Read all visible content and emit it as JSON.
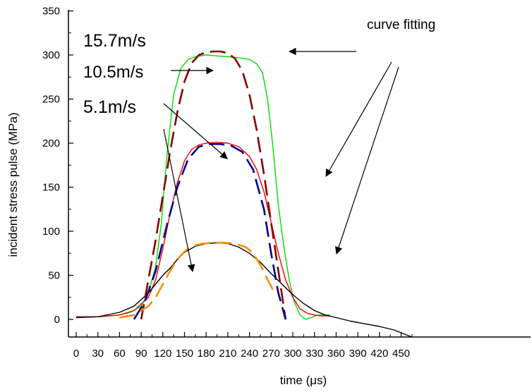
{
  "chart_data": {
    "type": "line",
    "xlabel": "time (μs)",
    "ylabel": "incident stress pulse (MPa)",
    "xlim": [
      -10,
      465
    ],
    "ylim": [
      -20,
      350
    ],
    "x_ticks": [
      0,
      30,
      60,
      90,
      120,
      150,
      180,
      210,
      240,
      270,
      300,
      330,
      360,
      390,
      420,
      450
    ],
    "y_ticks": [
      0,
      50,
      100,
      150,
      200,
      250,
      300,
      350
    ],
    "grid": false,
    "legend": "none",
    "annotations": {
      "label_15_7": "15.7m/s",
      "label_10_5": "10.5m/s",
      "label_5_1": "5.1m/s",
      "label_fit": "curve fitting"
    },
    "series": [
      {
        "color": "#00dd00",
        "style": "solid",
        "x": [
          0,
          30,
          60,
          75,
          90,
          100,
          110,
          118,
          125,
          135,
          145,
          155,
          165,
          180,
          195,
          210,
          225,
          240,
          250,
          258,
          265,
          272,
          280,
          288,
          295,
          302,
          310,
          318,
          325,
          335,
          345,
          352
        ],
        "y": [
          3,
          3,
          5,
          8,
          15,
          30,
          60,
          110,
          180,
          255,
          285,
          295,
          298,
          300,
          299,
          298,
          297,
          295,
          290,
          280,
          250,
          200,
          130,
          80,
          45,
          20,
          5,
          0,
          2,
          5,
          5,
          5
        ]
      },
      {
        "color": "#ee0000",
        "style": "solid",
        "x": [
          0,
          30,
          60,
          80,
          100,
          110,
          120,
          130,
          140,
          150,
          160,
          170,
          180,
          195,
          210,
          225,
          240,
          250,
          260,
          270,
          280,
          290,
          300,
          310,
          320,
          330,
          340,
          350
        ],
        "y": [
          3,
          3,
          5,
          10,
          25,
          45,
          80,
          120,
          155,
          180,
          193,
          198,
          200,
          201,
          200,
          196,
          185,
          170,
          145,
          110,
          75,
          45,
          25,
          12,
          7,
          5,
          4,
          4
        ]
      },
      {
        "color": "#000000",
        "style": "solid",
        "x": [
          0,
          30,
          60,
          80,
          100,
          110,
          120,
          130,
          140,
          150,
          165,
          180,
          195,
          210,
          225,
          240,
          255,
          270,
          285,
          300,
          315,
          330,
          345,
          360,
          380,
          400,
          420,
          440,
          465
        ],
        "y": [
          2,
          3,
          8,
          15,
          30,
          40,
          50,
          58,
          68,
          76,
          83,
          86,
          87,
          86,
          82,
          75,
          65,
          52,
          40,
          28,
          18,
          10,
          5,
          2,
          -2,
          -5,
          -8,
          -12,
          -20
        ]
      },
      {
        "color": "#880000",
        "style": "dashed",
        "x": [
          90,
          100,
          110,
          120,
          130,
          140,
          150,
          160,
          170,
          180,
          190,
          200,
          210,
          220,
          230,
          240,
          250,
          260,
          270,
          280,
          290
        ],
        "y": [
          0,
          45,
          90,
          140,
          190,
          235,
          270,
          291,
          300,
          303,
          304,
          304,
          302,
          296,
          282,
          255,
          215,
          165,
          110,
          55,
          0
        ]
      },
      {
        "color": "#00008b",
        "style": "dashed",
        "x": [
          80,
          95,
          110,
          125,
          140,
          155,
          170,
          185,
          200,
          215,
          230,
          245,
          260,
          270,
          280,
          290
        ],
        "y": [
          0,
          20,
          55,
          105,
          150,
          182,
          196,
          199,
          199,
          197,
          190,
          170,
          125,
          75,
          30,
          0
        ]
      },
      {
        "color": "#ff8c00",
        "style": "dashed",
        "x": [
          60,
          80,
          100,
          110,
          120,
          130,
          140,
          150,
          160,
          175,
          190,
          205,
          220,
          235,
          245,
          255,
          265,
          275
        ],
        "y": [
          2,
          5,
          15,
          25,
          40,
          55,
          68,
          77,
          83,
          86,
          87,
          87,
          86,
          82,
          75,
          62,
          45,
          30
        ]
      }
    ]
  }
}
